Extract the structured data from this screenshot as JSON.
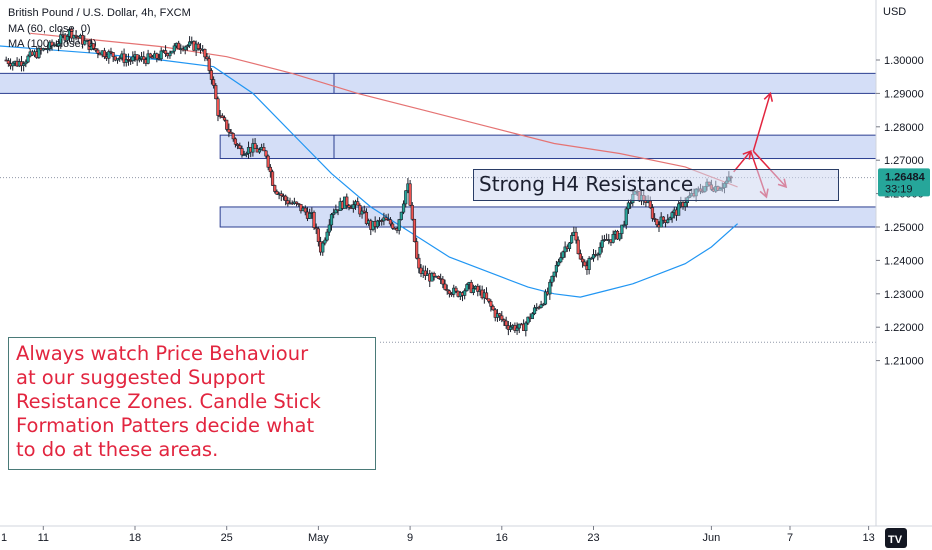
{
  "header": {
    "symbol_line": "British Pound / U.S. Dollar, 4h, FXCM",
    "ma60_line": "MA (60, close, 0)",
    "ma100_line": "MA (100, close, 0)"
  },
  "axis": {
    "currency": "USD",
    "price_label": "1.26484",
    "countdown_label": "33:19"
  },
  "annotations": {
    "resistance_label": "Strong H4 Resistance",
    "note_text": "Always watch Price Behaviour\nat our suggested Support\nResistance Zones. Candle Stick\nFormation Patters decide what\nto do at these areas."
  },
  "colors": {
    "bull": "#26a69a",
    "bear": "#ef5350",
    "ma60": "#2196f3",
    "ma100": "#e57373",
    "zone_fill": "#cfdaf6",
    "zone_border": "#2a3d8f",
    "arrow": "#e2253f",
    "note_text": "#e2253f",
    "price_tag": "#26a69a"
  },
  "chart_data": {
    "type": "candlestick",
    "symbol": "GBPUSD",
    "timeframe": "4h",
    "currency": "USD",
    "y_ticks": [
      1.3,
      1.29,
      1.28,
      1.27,
      1.26,
      1.25,
      1.24,
      1.23,
      1.22,
      1.21
    ],
    "ylim": [
      1.2045,
      1.3105
    ],
    "x_ticks": [
      "11",
      "18",
      "25",
      "May",
      "9",
      "16",
      "23",
      "Jun",
      "7",
      "13"
    ],
    "x_tick_days": [
      11,
      18,
      25,
      32,
      39,
      46,
      53,
      62,
      68,
      74
    ],
    "last_price": 1.26484,
    "zones": [
      {
        "from": 1.29,
        "to": 1.296,
        "start_day": 0,
        "end_day": 80
      },
      {
        "from": 1.2705,
        "to": 1.2775,
        "start_day": 24.5,
        "end_day": 80
      },
      {
        "from": 1.25,
        "to": 1.256,
        "start_day": 24.5,
        "end_day": 80
      }
    ],
    "dotted_levels": [
      1.2648,
      1.2155
    ],
    "closes_by_day": [
      {
        "day": 7.0,
        "close": 1.301
      },
      {
        "day": 9.0,
        "close": 1.299
      },
      {
        "day": 10.5,
        "close": 1.302
      },
      {
        "day": 12.0,
        "close": 1.305
      },
      {
        "day": 13.0,
        "close": 1.3085
      },
      {
        "day": 15.0,
        "close": 1.303
      },
      {
        "day": 17.5,
        "close": 1.3
      },
      {
        "day": 19.5,
        "close": 1.3005
      },
      {
        "day": 21.5,
        "close": 1.3045
      },
      {
        "day": 23.0,
        "close": 1.304
      },
      {
        "day": 23.8,
        "close": 1.296
      },
      {
        "day": 24.4,
        "close": 1.283
      },
      {
        "day": 25.0,
        "close": 1.28
      },
      {
        "day": 26.0,
        "close": 1.273
      },
      {
        "day": 27.0,
        "close": 1.2735
      },
      {
        "day": 28.0,
        "close": 1.272
      },
      {
        "day": 28.6,
        "close": 1.262
      },
      {
        "day": 29.5,
        "close": 1.258
      },
      {
        "day": 30.5,
        "close": 1.256
      },
      {
        "day": 31.5,
        "close": 1.253
      },
      {
        "day": 32.2,
        "close": 1.243
      },
      {
        "day": 33.0,
        "close": 1.2545
      },
      {
        "day": 34.0,
        "close": 1.2575
      },
      {
        "day": 35.0,
        "close": 1.256
      },
      {
        "day": 36.0,
        "close": 1.25
      },
      {
        "day": 37.0,
        "close": 1.252
      },
      {
        "day": 38.0,
        "close": 1.25
      },
      {
        "day": 38.8,
        "close": 1.263
      },
      {
        "day": 39.6,
        "close": 1.237
      },
      {
        "day": 40.5,
        "close": 1.235
      },
      {
        "day": 41.5,
        "close": 1.233
      },
      {
        "day": 42.5,
        "close": 1.23
      },
      {
        "day": 43.5,
        "close": 1.232
      },
      {
        "day": 44.5,
        "close": 1.23
      },
      {
        "day": 45.5,
        "close": 1.224
      },
      {
        "day": 46.5,
        "close": 1.2205
      },
      {
        "day": 47.5,
        "close": 1.2195
      },
      {
        "day": 48.5,
        "close": 1.225
      },
      {
        "day": 49.5,
        "close": 1.23
      },
      {
        "day": 50.5,
        "close": 1.242
      },
      {
        "day": 51.5,
        "close": 1.248
      },
      {
        "day": 52.3,
        "close": 1.237
      },
      {
        "day": 53.0,
        "close": 1.242
      },
      {
        "day": 54.0,
        "close": 1.246
      },
      {
        "day": 55.0,
        "close": 1.248
      },
      {
        "day": 56.0,
        "close": 1.26
      },
      {
        "day": 57.0,
        "close": 1.258
      },
      {
        "day": 57.8,
        "close": 1.251
      },
      {
        "day": 58.5,
        "close": 1.2525
      },
      {
        "day": 59.3,
        "close": 1.2545
      },
      {
        "day": 60.0,
        "close": 1.258
      },
      {
        "day": 60.8,
        "close": 1.26
      },
      {
        "day": 61.6,
        "close": 1.2625
      },
      {
        "day": 62.4,
        "close": 1.262
      },
      {
        "day": 63.0,
        "close": 1.263
      },
      {
        "day": 63.6,
        "close": 1.2648
      }
    ],
    "series": [
      {
        "name": "MA (60, close, 0)",
        "points": [
          [
            0,
            1.306
          ],
          [
            5,
            1.305
          ],
          [
            10,
            1.3035
          ],
          [
            15,
            1.302
          ],
          [
            20,
            1.3
          ],
          [
            24,
            1.298
          ],
          [
            27,
            1.29
          ],
          [
            30,
            1.278
          ],
          [
            33,
            1.266
          ],
          [
            36,
            1.256
          ],
          [
            38,
            1.251
          ],
          [
            40,
            1.246
          ],
          [
            42,
            1.241
          ],
          [
            44,
            1.238
          ],
          [
            46,
            1.235
          ],
          [
            48,
            1.232
          ],
          [
            50,
            1.23
          ],
          [
            52,
            1.229
          ],
          [
            54,
            1.231
          ],
          [
            56,
            1.233
          ],
          [
            58,
            1.236
          ],
          [
            60,
            1.239
          ],
          [
            62,
            1.244
          ],
          [
            64,
            1.251
          ]
        ]
      },
      {
        "name": "MA (100, close, 0)",
        "points": [
          [
            10,
            1.308
          ],
          [
            15,
            1.306
          ],
          [
            20,
            1.304
          ],
          [
            25,
            1.301
          ],
          [
            30,
            1.296
          ],
          [
            35,
            1.29
          ],
          [
            40,
            1.285
          ],
          [
            45,
            1.28
          ],
          [
            50,
            1.275
          ],
          [
            55,
            1.272
          ],
          [
            60,
            1.268
          ],
          [
            64,
            1.262
          ]
        ]
      }
    ],
    "forecast_arrows": [
      {
        "from_day": 63.7,
        "from_price": 1.2665,
        "to_day": 65.0,
        "to_price": 1.2727
      },
      {
        "from_day": 65.2,
        "from_price": 1.2727,
        "to_day": 66.5,
        "to_price": 1.29
      },
      {
        "from_day": 65.2,
        "from_price": 1.2727,
        "to_day": 67.7,
        "to_price": 1.262
      },
      {
        "from_day": 65.0,
        "from_price": 1.2727,
        "to_day": 66.2,
        "to_price": 1.259
      }
    ]
  }
}
